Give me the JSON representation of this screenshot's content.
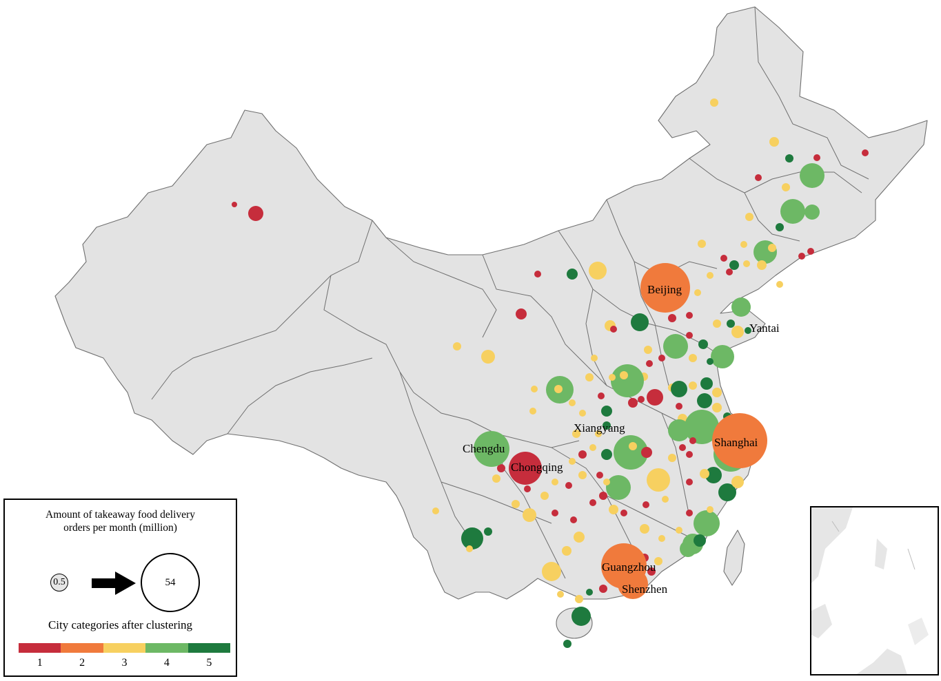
{
  "colors": {
    "cat1": "#c62d3c",
    "cat2": "#f07a3c",
    "cat3": "#f7d060",
    "cat4": "#6db865",
    "cat5": "#1e7a3e",
    "land": "#e3e3e3",
    "border": "#6f6f6f"
  },
  "labels": {
    "beijing": "Beijing",
    "yantai": "Yantai",
    "shanghai": "Shanghai",
    "xiangyang": "Xiangyang",
    "chengdu": "Chengdu",
    "chongqing": "Chongqing",
    "guangzhou": "Guangzhou",
    "shenzhen": "Shenzhen"
  },
  "legend": {
    "title_line1": "Amount of takeaway food delivery",
    "title_line2": "orders per month (million)",
    "min_value": "0.5",
    "max_value": "54",
    "categories_title": "City categories after clustering",
    "categories": [
      "1",
      "2",
      "3",
      "4",
      "5"
    ]
  },
  "dots": [
    {
      "name": "Beijing",
      "cat": 2,
      "size": 54,
      "label": "beijing"
    },
    {
      "name": "Shanghai",
      "cat": 2,
      "size": 54,
      "label": "shanghai"
    },
    {
      "name": "Guangzhou",
      "cat": 2,
      "size": 45,
      "label": "guangzhou"
    },
    {
      "name": "Shenzhen",
      "cat": 2,
      "size": 30,
      "label": "shenzhen"
    },
    {
      "name": "Chongqing",
      "cat": 1,
      "size": 20,
      "label": "chongqing"
    },
    {
      "name": "Chengdu",
      "cat": 4,
      "size": 20,
      "label": "chengdu"
    },
    {
      "name": "Xiangyang",
      "cat": 5,
      "size": 1,
      "label": "xiangyang"
    },
    {
      "name": "Yantai",
      "cat": 3,
      "size": 3,
      "label": "yantai"
    }
  ]
}
